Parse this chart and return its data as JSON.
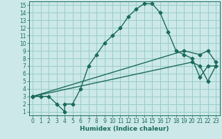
{
  "title": "",
  "xlabel": "Humidex (Indice chaleur)",
  "ylabel": "",
  "bg_color": "#cce8e8",
  "grid_color": "#99cccc",
  "line_color": "#1a6b5a",
  "xlim": [
    -0.5,
    23.5
  ],
  "ylim": [
    0.5,
    15.5
  ],
  "xticks": [
    0,
    1,
    2,
    3,
    4,
    5,
    6,
    7,
    8,
    9,
    10,
    11,
    12,
    13,
    14,
    15,
    16,
    17,
    18,
    19,
    20,
    21,
    22,
    23
  ],
  "yticks": [
    1,
    2,
    3,
    4,
    5,
    6,
    7,
    8,
    9,
    10,
    11,
    12,
    13,
    14,
    15
  ],
  "line1_x": [
    0,
    1,
    2,
    3,
    4,
    4,
    5,
    6,
    7,
    8,
    9,
    10,
    11,
    12,
    13,
    14,
    15,
    16,
    17,
    18,
    19,
    20,
    21,
    22,
    23
  ],
  "line1_y": [
    3,
    3,
    3,
    2,
    1,
    2,
    2,
    4,
    7,
    8.5,
    10,
    11,
    12,
    13.5,
    14.5,
    15.2,
    15.2,
    14,
    11.5,
    9,
    8.5,
    8,
    5.5,
    7,
    7
  ],
  "line2_x": [
    0,
    19,
    21,
    22,
    23
  ],
  "line2_y": [
    3,
    9,
    8.5,
    9,
    7.5
  ],
  "line3_x": [
    0,
    20,
    21,
    22,
    23
  ],
  "line3_y": [
    3,
    7.5,
    7,
    5,
    7
  ],
  "marker": "D",
  "markersize": 2.5,
  "linewidth": 1.0,
  "tick_fontsize": 5.5,
  "xlabel_fontsize": 6.5
}
